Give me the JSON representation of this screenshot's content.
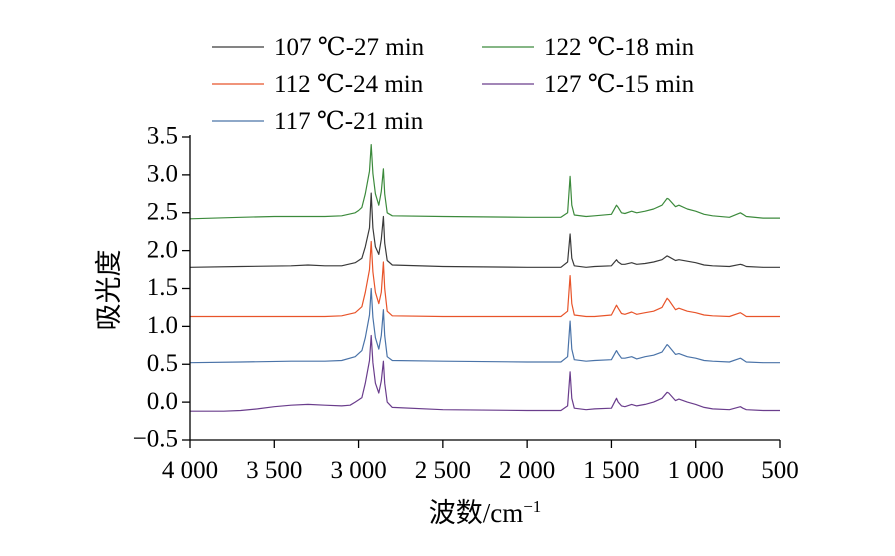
{
  "chart_data": {
    "type": "line",
    "xlabel": "波数/cm",
    "xlabel_sup": "−1",
    "ylabel": "吸光度",
    "xlim": [
      4000,
      500
    ],
    "ylim": [
      -0.5,
      3.5
    ],
    "xticks": [
      4000,
      3500,
      3000,
      2500,
      2000,
      1500,
      1000,
      500
    ],
    "xtick_labels": [
      "4 000",
      "3 500",
      "3 000",
      "2 500",
      "2 000",
      "1 500",
      "1 000",
      "500"
    ],
    "yticks": [
      -0.5,
      0.0,
      0.5,
      1.0,
      1.5,
      2.0,
      2.5,
      3.0,
      3.5
    ],
    "ytick_labels": [
      "−0.5",
      "0.0",
      "0.5",
      "1.0",
      "1.5",
      "2.0",
      "2.5",
      "3.0",
      "3.5"
    ],
    "grid": false,
    "legend_position": "top",
    "series": [
      {
        "name": "107 ℃-27 min",
        "color": "#3a3a3a",
        "baseline": 1.78,
        "points": [
          [
            4000,
            1.78
          ],
          [
            3700,
            1.79
          ],
          [
            3400,
            1.8
          ],
          [
            3300,
            1.81
          ],
          [
            3200,
            1.8
          ],
          [
            3100,
            1.8
          ],
          [
            3020,
            1.84
          ],
          [
            3000,
            1.87
          ],
          [
            2980,
            1.9
          ],
          [
            2960,
            2.05
          ],
          [
            2935,
            2.3
          ],
          [
            2925,
            2.76
          ],
          [
            2915,
            2.3
          ],
          [
            2900,
            2.05
          ],
          [
            2880,
            1.95
          ],
          [
            2865,
            2.15
          ],
          [
            2853,
            2.45
          ],
          [
            2845,
            2.1
          ],
          [
            2830,
            1.87
          ],
          [
            2800,
            1.81
          ],
          [
            2500,
            1.79
          ],
          [
            2000,
            1.78
          ],
          [
            1800,
            1.78
          ],
          [
            1760,
            1.85
          ],
          [
            1745,
            2.22
          ],
          [
            1735,
            1.9
          ],
          [
            1720,
            1.8
          ],
          [
            1650,
            1.78
          ],
          [
            1600,
            1.79
          ],
          [
            1500,
            1.8
          ],
          [
            1470,
            1.88
          ],
          [
            1460,
            1.85
          ],
          [
            1440,
            1.82
          ],
          [
            1420,
            1.82
          ],
          [
            1380,
            1.84
          ],
          [
            1350,
            1.82
          ],
          [
            1300,
            1.83
          ],
          [
            1250,
            1.85
          ],
          [
            1200,
            1.88
          ],
          [
            1170,
            1.93
          ],
          [
            1160,
            1.92
          ],
          [
            1120,
            1.87
          ],
          [
            1100,
            1.88
          ],
          [
            1050,
            1.86
          ],
          [
            1000,
            1.84
          ],
          [
            950,
            1.81
          ],
          [
            900,
            1.8
          ],
          [
            800,
            1.79
          ],
          [
            735,
            1.82
          ],
          [
            720,
            1.81
          ],
          [
            700,
            1.79
          ],
          [
            600,
            1.78
          ],
          [
            500,
            1.78
          ]
        ]
      },
      {
        "name": "112 ℃-24 min",
        "color": "#e8542a",
        "baseline": 1.13,
        "points": [
          [
            4000,
            1.13
          ],
          [
            3700,
            1.13
          ],
          [
            3400,
            1.13
          ],
          [
            3200,
            1.13
          ],
          [
            3100,
            1.14
          ],
          [
            3020,
            1.18
          ],
          [
            3000,
            1.22
          ],
          [
            2980,
            1.26
          ],
          [
            2960,
            1.45
          ],
          [
            2935,
            1.75
          ],
          [
            2925,
            2.12
          ],
          [
            2915,
            1.72
          ],
          [
            2900,
            1.45
          ],
          [
            2880,
            1.3
          ],
          [
            2865,
            1.45
          ],
          [
            2853,
            1.85
          ],
          [
            2845,
            1.5
          ],
          [
            2830,
            1.2
          ],
          [
            2800,
            1.14
          ],
          [
            2500,
            1.13
          ],
          [
            2000,
            1.13
          ],
          [
            1800,
            1.13
          ],
          [
            1760,
            1.2
          ],
          [
            1745,
            1.67
          ],
          [
            1735,
            1.3
          ],
          [
            1720,
            1.15
          ],
          [
            1650,
            1.13
          ],
          [
            1600,
            1.13
          ],
          [
            1500,
            1.15
          ],
          [
            1470,
            1.28
          ],
          [
            1460,
            1.24
          ],
          [
            1440,
            1.17
          ],
          [
            1420,
            1.16
          ],
          [
            1380,
            1.19
          ],
          [
            1350,
            1.16
          ],
          [
            1300,
            1.18
          ],
          [
            1250,
            1.2
          ],
          [
            1200,
            1.25
          ],
          [
            1170,
            1.37
          ],
          [
            1160,
            1.35
          ],
          [
            1120,
            1.22
          ],
          [
            1100,
            1.24
          ],
          [
            1050,
            1.2
          ],
          [
            1000,
            1.18
          ],
          [
            950,
            1.15
          ],
          [
            900,
            1.14
          ],
          [
            800,
            1.13
          ],
          [
            735,
            1.18
          ],
          [
            720,
            1.16
          ],
          [
            700,
            1.13
          ],
          [
            600,
            1.13
          ],
          [
            500,
            1.13
          ]
        ]
      },
      {
        "name": "117 ℃-21 min",
        "color": "#4a73a8",
        "baseline": 0.52,
        "points": [
          [
            4000,
            0.52
          ],
          [
            3700,
            0.53
          ],
          [
            3400,
            0.54
          ],
          [
            3300,
            0.54
          ],
          [
            3200,
            0.54
          ],
          [
            3100,
            0.55
          ],
          [
            3020,
            0.6
          ],
          [
            3000,
            0.64
          ],
          [
            2980,
            0.68
          ],
          [
            2960,
            0.85
          ],
          [
            2935,
            1.15
          ],
          [
            2925,
            1.5
          ],
          [
            2915,
            1.12
          ],
          [
            2900,
            0.85
          ],
          [
            2880,
            0.7
          ],
          [
            2865,
            0.88
          ],
          [
            2853,
            1.22
          ],
          [
            2845,
            0.88
          ],
          [
            2830,
            0.6
          ],
          [
            2800,
            0.55
          ],
          [
            2500,
            0.54
          ],
          [
            2000,
            0.53
          ],
          [
            1800,
            0.53
          ],
          [
            1760,
            0.6
          ],
          [
            1745,
            1.07
          ],
          [
            1735,
            0.7
          ],
          [
            1720,
            0.56
          ],
          [
            1650,
            0.54
          ],
          [
            1600,
            0.55
          ],
          [
            1500,
            0.56
          ],
          [
            1470,
            0.68
          ],
          [
            1460,
            0.64
          ],
          [
            1440,
            0.58
          ],
          [
            1420,
            0.58
          ],
          [
            1380,
            0.6
          ],
          [
            1350,
            0.57
          ],
          [
            1300,
            0.6
          ],
          [
            1250,
            0.62
          ],
          [
            1200,
            0.66
          ],
          [
            1170,
            0.76
          ],
          [
            1160,
            0.74
          ],
          [
            1120,
            0.63
          ],
          [
            1100,
            0.64
          ],
          [
            1050,
            0.6
          ],
          [
            1000,
            0.58
          ],
          [
            950,
            0.55
          ],
          [
            900,
            0.54
          ],
          [
            800,
            0.53
          ],
          [
            735,
            0.58
          ],
          [
            720,
            0.56
          ],
          [
            700,
            0.53
          ],
          [
            600,
            0.52
          ],
          [
            500,
            0.52
          ]
        ]
      },
      {
        "name": "122 ℃-18 min",
        "color": "#3c8a3c",
        "baseline": 2.42,
        "points": [
          [
            4000,
            2.42
          ],
          [
            3700,
            2.44
          ],
          [
            3500,
            2.45
          ],
          [
            3400,
            2.45
          ],
          [
            3200,
            2.45
          ],
          [
            3100,
            2.46
          ],
          [
            3020,
            2.5
          ],
          [
            3000,
            2.53
          ],
          [
            2980,
            2.57
          ],
          [
            2960,
            2.75
          ],
          [
            2935,
            3.05
          ],
          [
            2925,
            3.4
          ],
          [
            2915,
            3.02
          ],
          [
            2900,
            2.75
          ],
          [
            2880,
            2.6
          ],
          [
            2865,
            2.78
          ],
          [
            2853,
            3.08
          ],
          [
            2845,
            2.75
          ],
          [
            2830,
            2.5
          ],
          [
            2800,
            2.46
          ],
          [
            2500,
            2.45
          ],
          [
            2000,
            2.44
          ],
          [
            1800,
            2.44
          ],
          [
            1760,
            2.5
          ],
          [
            1745,
            2.98
          ],
          [
            1735,
            2.6
          ],
          [
            1720,
            2.47
          ],
          [
            1650,
            2.45
          ],
          [
            1600,
            2.46
          ],
          [
            1500,
            2.48
          ],
          [
            1470,
            2.6
          ],
          [
            1460,
            2.57
          ],
          [
            1440,
            2.5
          ],
          [
            1420,
            2.49
          ],
          [
            1380,
            2.52
          ],
          [
            1350,
            2.5
          ],
          [
            1300,
            2.52
          ],
          [
            1250,
            2.55
          ],
          [
            1200,
            2.6
          ],
          [
            1170,
            2.69
          ],
          [
            1160,
            2.68
          ],
          [
            1120,
            2.58
          ],
          [
            1100,
            2.6
          ],
          [
            1050,
            2.55
          ],
          [
            1000,
            2.52
          ],
          [
            950,
            2.48
          ],
          [
            900,
            2.46
          ],
          [
            800,
            2.44
          ],
          [
            735,
            2.5
          ],
          [
            720,
            2.48
          ],
          [
            700,
            2.45
          ],
          [
            600,
            2.43
          ],
          [
            500,
            2.43
          ]
        ]
      },
      {
        "name": "127 ℃-15 min",
        "color": "#6a3d8c",
        "baseline": -0.12,
        "points": [
          [
            4000,
            -0.12
          ],
          [
            3800,
            -0.12
          ],
          [
            3700,
            -0.11
          ],
          [
            3600,
            -0.09
          ],
          [
            3500,
            -0.06
          ],
          [
            3400,
            -0.04
          ],
          [
            3300,
            -0.03
          ],
          [
            3200,
            -0.04
          ],
          [
            3100,
            -0.05
          ],
          [
            3050,
            -0.04
          ],
          [
            3020,
            0.0
          ],
          [
            3000,
            0.03
          ],
          [
            2980,
            0.06
          ],
          [
            2960,
            0.25
          ],
          [
            2935,
            0.55
          ],
          [
            2925,
            0.88
          ],
          [
            2915,
            0.52
          ],
          [
            2900,
            0.25
          ],
          [
            2880,
            0.12
          ],
          [
            2865,
            0.28
          ],
          [
            2853,
            0.54
          ],
          [
            2845,
            0.25
          ],
          [
            2830,
            0.0
          ],
          [
            2800,
            -0.07
          ],
          [
            2500,
            -0.1
          ],
          [
            2000,
            -0.11
          ],
          [
            1800,
            -0.11
          ],
          [
            1760,
            -0.05
          ],
          [
            1745,
            0.4
          ],
          [
            1735,
            0.05
          ],
          [
            1720,
            -0.08
          ],
          [
            1650,
            -0.1
          ],
          [
            1600,
            -0.09
          ],
          [
            1500,
            -0.08
          ],
          [
            1470,
            0.05
          ],
          [
            1460,
            0.0
          ],
          [
            1440,
            -0.05
          ],
          [
            1420,
            -0.06
          ],
          [
            1380,
            -0.03
          ],
          [
            1350,
            -0.05
          ],
          [
            1300,
            -0.03
          ],
          [
            1250,
            0.0
          ],
          [
            1200,
            0.05
          ],
          [
            1170,
            0.13
          ],
          [
            1160,
            0.12
          ],
          [
            1120,
            0.02
          ],
          [
            1100,
            0.04
          ],
          [
            1050,
            0.0
          ],
          [
            1000,
            -0.03
          ],
          [
            950,
            -0.07
          ],
          [
            900,
            -0.09
          ],
          [
            800,
            -0.1
          ],
          [
            735,
            -0.06
          ],
          [
            720,
            -0.08
          ],
          [
            700,
            -0.1
          ],
          [
            600,
            -0.11
          ],
          [
            500,
            -0.11
          ]
        ]
      }
    ],
    "legend_columns": [
      [
        "107 ℃-27 min",
        "112 ℃-24 min",
        "117 ℃-21 min"
      ],
      [
        "122 ℃-18 min",
        "127 ℃-15 min"
      ]
    ]
  }
}
